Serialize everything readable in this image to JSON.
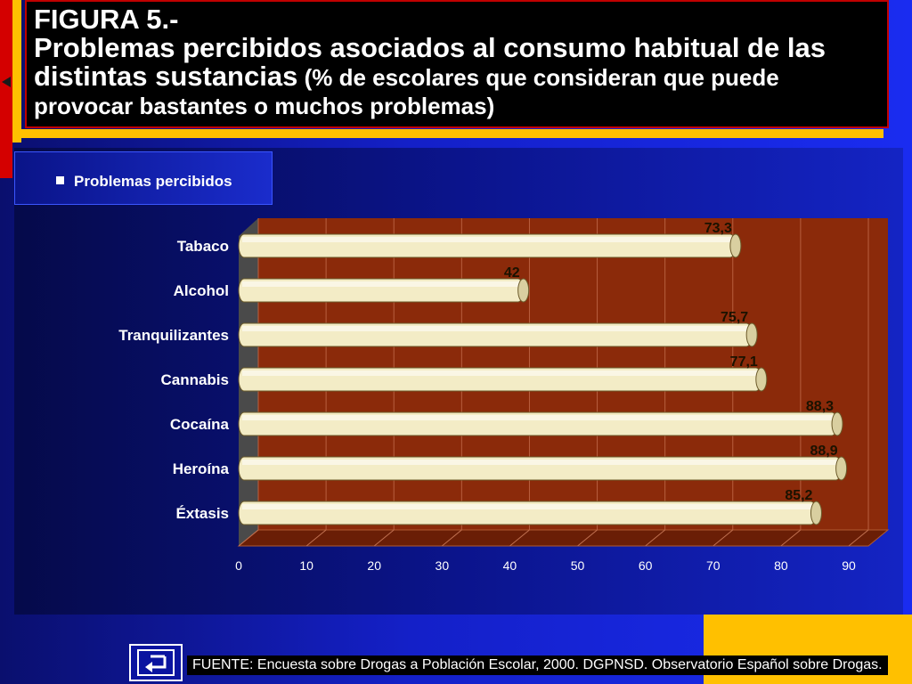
{
  "title": {
    "figure": "FIGURA 5.-",
    "main": "Problemas percibidos asociados al consumo habitual de las distintas sustancias",
    "sub": " (% de escolares que consideran que puede provocar bastantes o muchos problemas)"
  },
  "legend": {
    "label": "Problemas percibidos"
  },
  "footer": {
    "source": "FUENTE: Encuesta sobre Drogas a Población Escolar, 2000. DGPNSD. Observatorio Español sobre Drogas."
  },
  "colors": {
    "bar": "#f3ecc6",
    "plot_bg": "#8b2a0a",
    "title_bg": "#000000",
    "accent_red": "#d40000",
    "accent_yellow": "#ffc000"
  },
  "icons": {
    "back": "return-arrow-icon"
  },
  "chart_data": {
    "type": "bar",
    "orientation": "horizontal",
    "categories": [
      "Tabaco",
      "Alcohol",
      "Tranquilizantes",
      "Cannabis",
      "Cocaína",
      "Heroína",
      "Éxtasis"
    ],
    "series": [
      {
        "name": "Problemas percibidos",
        "values": [
          73.3,
          42,
          75.7,
          77.1,
          88.3,
          88.9,
          85.2
        ]
      }
    ],
    "data_labels": [
      "73,3",
      "42",
      "75,7",
      "77,1",
      "88,3",
      "88,9",
      "85,2"
    ],
    "xlim": [
      0,
      90
    ],
    "xticks": [
      0,
      10,
      20,
      30,
      40,
      50,
      60,
      70,
      80,
      90
    ],
    "grid": true,
    "legend_position": "top-left"
  }
}
